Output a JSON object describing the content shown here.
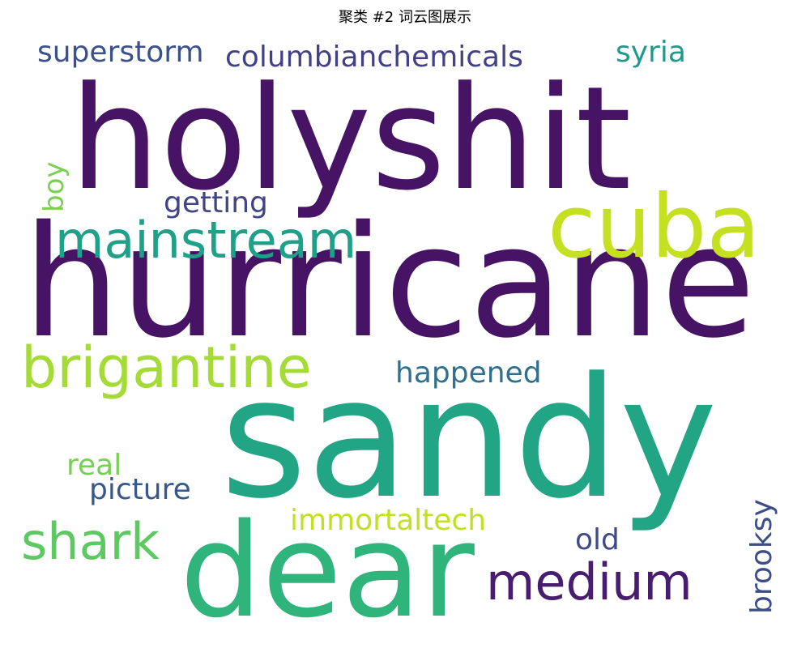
{
  "title": "聚类 #2 词云图展示",
  "words": [
    {
      "id": "holyshit",
      "text": "holyshit",
      "color": "#471365"
    },
    {
      "id": "hurricane",
      "text": "hurricane",
      "color": "#471365"
    },
    {
      "id": "sandy",
      "text": "sandy",
      "color": "#21a585"
    },
    {
      "id": "dear",
      "text": "dear",
      "color": "#2fb47c"
    },
    {
      "id": "cuba",
      "text": "cuba",
      "color": "#c5e021"
    },
    {
      "id": "mainstream",
      "text": "mainstream",
      "color": "#1fa088"
    },
    {
      "id": "brigantine",
      "text": "brigantine",
      "color": "#a5db36"
    },
    {
      "id": "shark",
      "text": "shark",
      "color": "#5ec962"
    },
    {
      "id": "medium",
      "text": "medium",
      "color": "#481c6e"
    },
    {
      "id": "superstorm",
      "text": "superstorm",
      "color": "#3b518b"
    },
    {
      "id": "columbianchemicals",
      "text": "columbianchemicals",
      "color": "#424086"
    },
    {
      "id": "syria",
      "text": "syria",
      "color": "#1f998a"
    },
    {
      "id": "getting",
      "text": "getting",
      "color": "#414487"
    },
    {
      "id": "boy",
      "text": "boy",
      "color": "#7ad151"
    },
    {
      "id": "happened",
      "text": "happened",
      "color": "#30708e"
    },
    {
      "id": "real",
      "text": "real",
      "color": "#75d054"
    },
    {
      "id": "picture",
      "text": "picture",
      "color": "#38588c"
    },
    {
      "id": "immortaltech",
      "text": "immortaltech",
      "color": "#c2df23"
    },
    {
      "id": "old",
      "text": "old",
      "color": "#3e4a89"
    },
    {
      "id": "brooksy",
      "text": "brooksy",
      "color": "#3d4d8a"
    }
  ]
}
